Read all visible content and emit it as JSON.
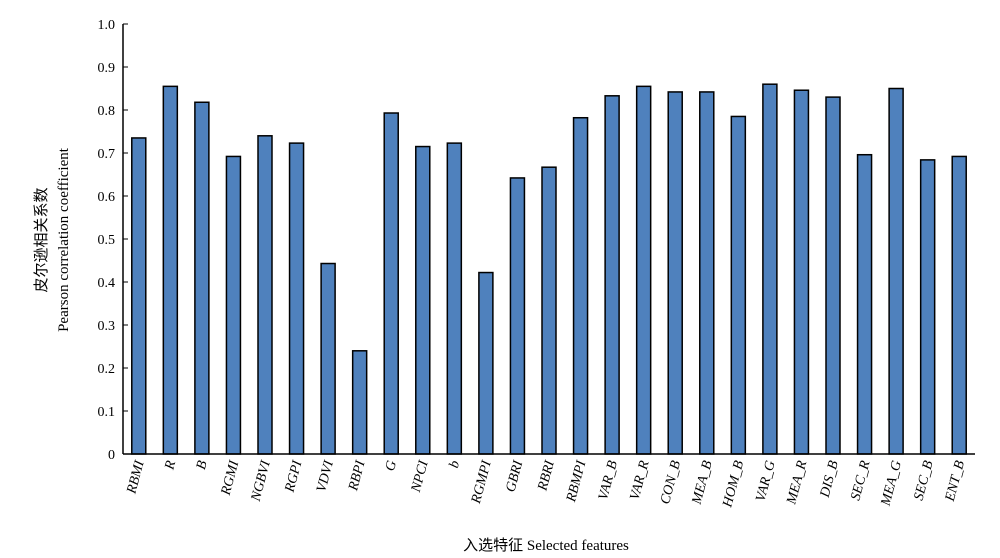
{
  "chart_data": {
    "type": "bar",
    "title": "",
    "xlabel": "入选特征 Selected features",
    "ylabel_cn": "皮尔逊相关系数",
    "ylabel_en": "Pearson correlation coefficient",
    "ylim": [
      0,
      1.0
    ],
    "yticks": [
      "0",
      "0.1",
      "0.2",
      "0.3",
      "0.4",
      "0.5",
      "0.6",
      "0.7",
      "0.8",
      "0.9",
      "1.0"
    ],
    "grid": false,
    "legend": "none",
    "bar_color": "#4F81BD",
    "categories": [
      "RBMI",
      "R",
      "B",
      "RGMI",
      "NGBVI",
      "RGPI",
      "VDVI",
      "RBPI",
      "G",
      "NPCI",
      "b",
      "RGMPI",
      "GBRI",
      "RBRI",
      "RBMPI",
      "VAR_B",
      "VAR_R",
      "CON_B",
      "MEA_B",
      "HOM_B",
      "VAR_G",
      "MEA_R",
      "DIS_B",
      "SEC_R",
      "MEA_G",
      "SEC_B",
      "ENT_B"
    ],
    "values": [
      0.735,
      0.855,
      0.818,
      0.692,
      0.74,
      0.723,
      0.443,
      0.24,
      0.793,
      0.715,
      0.723,
      0.422,
      0.642,
      0.667,
      0.782,
      0.833,
      0.855,
      0.842,
      0.842,
      0.785,
      0.86,
      0.846,
      0.83,
      0.696,
      0.85,
      0.684,
      0.692
    ]
  }
}
